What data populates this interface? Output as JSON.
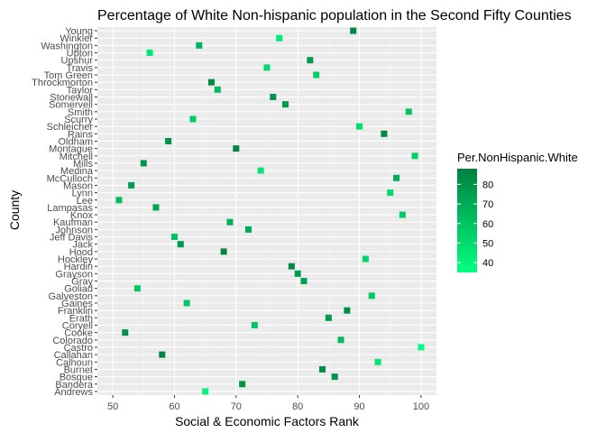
{
  "chart_data": {
    "type": "scatter",
    "title": "Percentage of White Non-hispanic population in the Second Fifty Counties",
    "xlabel": "Social & Economic Factors Rank",
    "ylabel": "County",
    "xlim": [
      47.5,
      102.5
    ],
    "xticks": [
      50,
      60,
      70,
      80,
      90,
      100
    ],
    "grid": true,
    "legend": {
      "title": "Per.NonHispanic.White",
      "placement": "right",
      "ticks": [
        40,
        50,
        60,
        70,
        80
      ],
      "range": [
        35,
        88
      ],
      "color_low": "#00ff80",
      "color_high": "#008040"
    },
    "categories": [
      "Andrews",
      "Bandera",
      "Bosque",
      "Burnet",
      "Calhoun",
      "Callahan",
      "Castro",
      "Colorado",
      "Cooke",
      "Coryell",
      "Erath",
      "Franklin",
      "Gaines",
      "Galveston",
      "Goliad",
      "Gray",
      "Grayson",
      "Hardin",
      "Hockley",
      "Hood",
      "Jack",
      "Jeff Davis",
      "Johnson",
      "Kaufman",
      "Knox",
      "Lampasas",
      "Lee",
      "Lynn",
      "Mason",
      "McCulloch",
      "Medina",
      "Mills",
      "Mitchell",
      "Montague",
      "Oldham",
      "Rains",
      "Schleicher",
      "Scurry",
      "Smith",
      "Somervell",
      "Stonewall",
      "Taylor",
      "Throckmorton",
      "Tom Green",
      "Travis",
      "Upshur",
      "Upton",
      "Washington",
      "Winkler",
      "Young"
    ],
    "points": [
      {
        "county": "Andrews",
        "x": 65,
        "value": 40
      },
      {
        "county": "Bandera",
        "x": 71,
        "value": 80
      },
      {
        "county": "Bosque",
        "x": 86,
        "value": 80
      },
      {
        "county": "Burnet",
        "x": 84,
        "value": 82
      },
      {
        "county": "Calhoun",
        "x": 93,
        "value": 46
      },
      {
        "county": "Callahan",
        "x": 58,
        "value": 86
      },
      {
        "county": "Castro",
        "x": 100,
        "value": 36
      },
      {
        "county": "Colorado",
        "x": 87,
        "value": 62
      },
      {
        "county": "Cooke",
        "x": 52,
        "value": 80
      },
      {
        "county": "Coryell",
        "x": 73,
        "value": 58
      },
      {
        "county": "Erath",
        "x": 85,
        "value": 77
      },
      {
        "county": "Franklin",
        "x": 88,
        "value": 83
      },
      {
        "county": "Gaines",
        "x": 62,
        "value": 58
      },
      {
        "county": "Galveston",
        "x": 92,
        "value": 58
      },
      {
        "county": "Goliad",
        "x": 54,
        "value": 58
      },
      {
        "county": "Gray",
        "x": 81,
        "value": 74
      },
      {
        "county": "Grayson",
        "x": 80,
        "value": 76
      },
      {
        "county": "Hardin",
        "x": 79,
        "value": 84
      },
      {
        "county": "Hockley",
        "x": 91,
        "value": 53
      },
      {
        "county": "Hood",
        "x": 68,
        "value": 86
      },
      {
        "county": "Jack",
        "x": 61,
        "value": 78
      },
      {
        "county": "Jeff Davis",
        "x": 60,
        "value": 61
      },
      {
        "county": "Johnson",
        "x": 72,
        "value": 70
      },
      {
        "county": "Kaufman",
        "x": 69,
        "value": 68
      },
      {
        "county": "Knox",
        "x": 97,
        "value": 56
      },
      {
        "county": "Lampasas",
        "x": 57,
        "value": 72
      },
      {
        "county": "Lee",
        "x": 51,
        "value": 62
      },
      {
        "county": "Lynn",
        "x": 95,
        "value": 50
      },
      {
        "county": "Mason",
        "x": 53,
        "value": 75
      },
      {
        "county": "McCulloch",
        "x": 96,
        "value": 70
      },
      {
        "county": "Medina",
        "x": 74,
        "value": 46
      },
      {
        "county": "Mills",
        "x": 55,
        "value": 79
      },
      {
        "county": "Mitchell",
        "x": 99,
        "value": 54
      },
      {
        "county": "Montague",
        "x": 70,
        "value": 85
      },
      {
        "county": "Oldham",
        "x": 59,
        "value": 80
      },
      {
        "county": "Rains",
        "x": 94,
        "value": 85
      },
      {
        "county": "Schleicher",
        "x": 90,
        "value": 48
      },
      {
        "county": "Scurry",
        "x": 63,
        "value": 56
      },
      {
        "county": "Smith",
        "x": 98,
        "value": 60
      },
      {
        "county": "Somervell",
        "x": 78,
        "value": 78
      },
      {
        "county": "Stonewall",
        "x": 76,
        "value": 80
      },
      {
        "county": "Taylor",
        "x": 67,
        "value": 64
      },
      {
        "county": "Throckmorton",
        "x": 66,
        "value": 84
      },
      {
        "county": "Tom Green",
        "x": 83,
        "value": 55
      },
      {
        "county": "Travis",
        "x": 75,
        "value": 50
      },
      {
        "county": "Upshur",
        "x": 82,
        "value": 78
      },
      {
        "county": "Upton",
        "x": 56,
        "value": 45
      },
      {
        "county": "Washington",
        "x": 64,
        "value": 66
      },
      {
        "county": "Winkler",
        "x": 77,
        "value": 42
      },
      {
        "county": "Young",
        "x": 89,
        "value": 86
      }
    ]
  }
}
